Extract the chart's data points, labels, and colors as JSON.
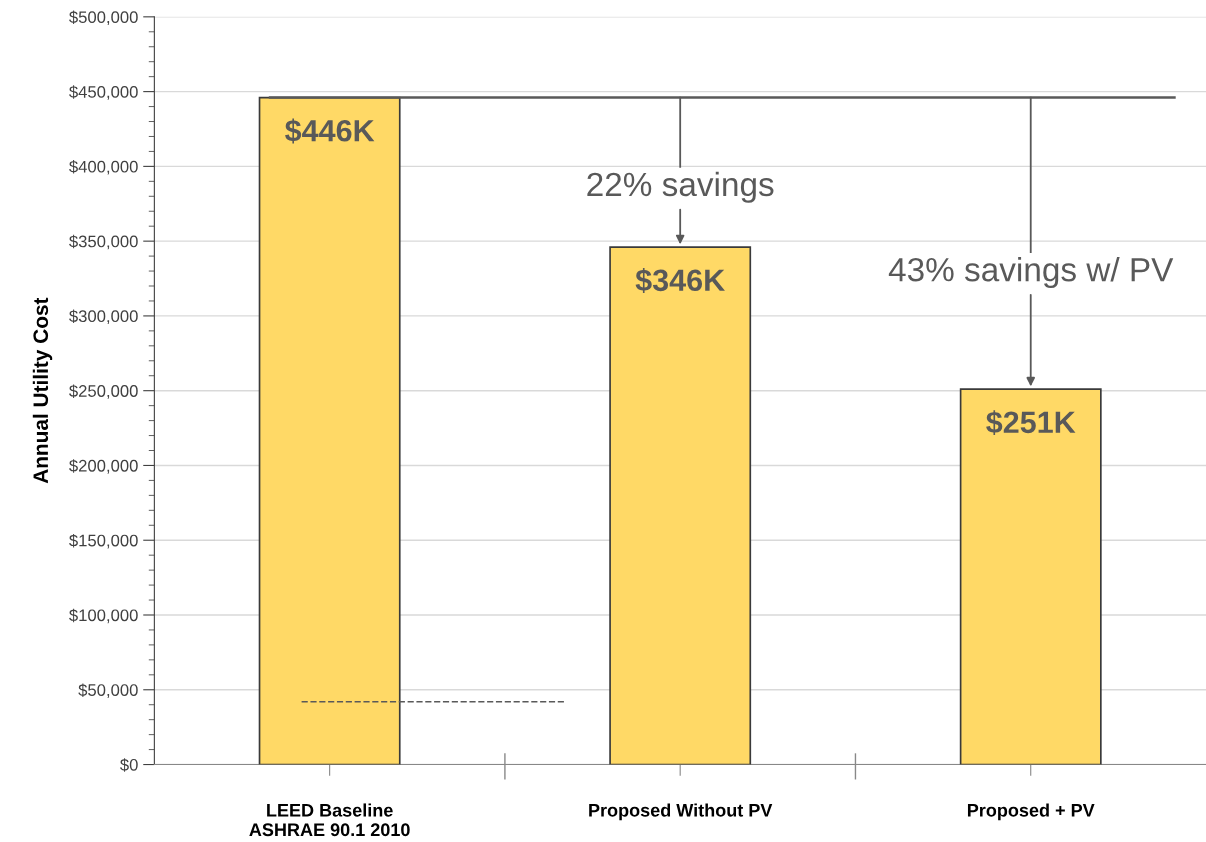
{
  "chart_data": {
    "type": "bar",
    "ylabel": "Annual Utility Cost",
    "categories": [
      "LEED Baseline\nASHRAE 90.1 2010",
      "Proposed Without PV",
      "Proposed + PV"
    ],
    "values": [
      446000,
      346000,
      251000
    ],
    "color": "#ffd966",
    "value_labels": [
      "$446K",
      "$346K",
      "$251K"
    ],
    "ylim": [
      0,
      500000
    ],
    "yticks": [
      {
        "value": 0,
        "label": "$0"
      },
      {
        "value": 50000,
        "label": "$50,000"
      },
      {
        "value": 100000,
        "label": "$100,000"
      },
      {
        "value": 150000,
        "label": "$150,000"
      },
      {
        "value": 200000,
        "label": "$200,000"
      },
      {
        "value": 250000,
        "label": "$250,000"
      },
      {
        "value": 300000,
        "label": "$300,000"
      },
      {
        "value": 350000,
        "label": "$350,000"
      },
      {
        "value": 400000,
        "label": "$400,000"
      },
      {
        "value": 450000,
        "label": "$450,000"
      },
      {
        "value": 500000,
        "label": "$500,000"
      }
    ],
    "grid": "y",
    "ref_lines": [
      {
        "axis": "y",
        "value": 446000,
        "color": "#595959",
        "line_style": "solid"
      },
      {
        "axis": "y",
        "value": 42000,
        "color": "#595959",
        "line_style": "dashed"
      }
    ],
    "annotations": [
      {
        "text": "22% savings",
        "x": "Proposed Without PV",
        "y": 346000
      },
      {
        "text": "43% savings w/ PV",
        "x": "Proposed + PV",
        "y": 251000
      }
    ]
  }
}
